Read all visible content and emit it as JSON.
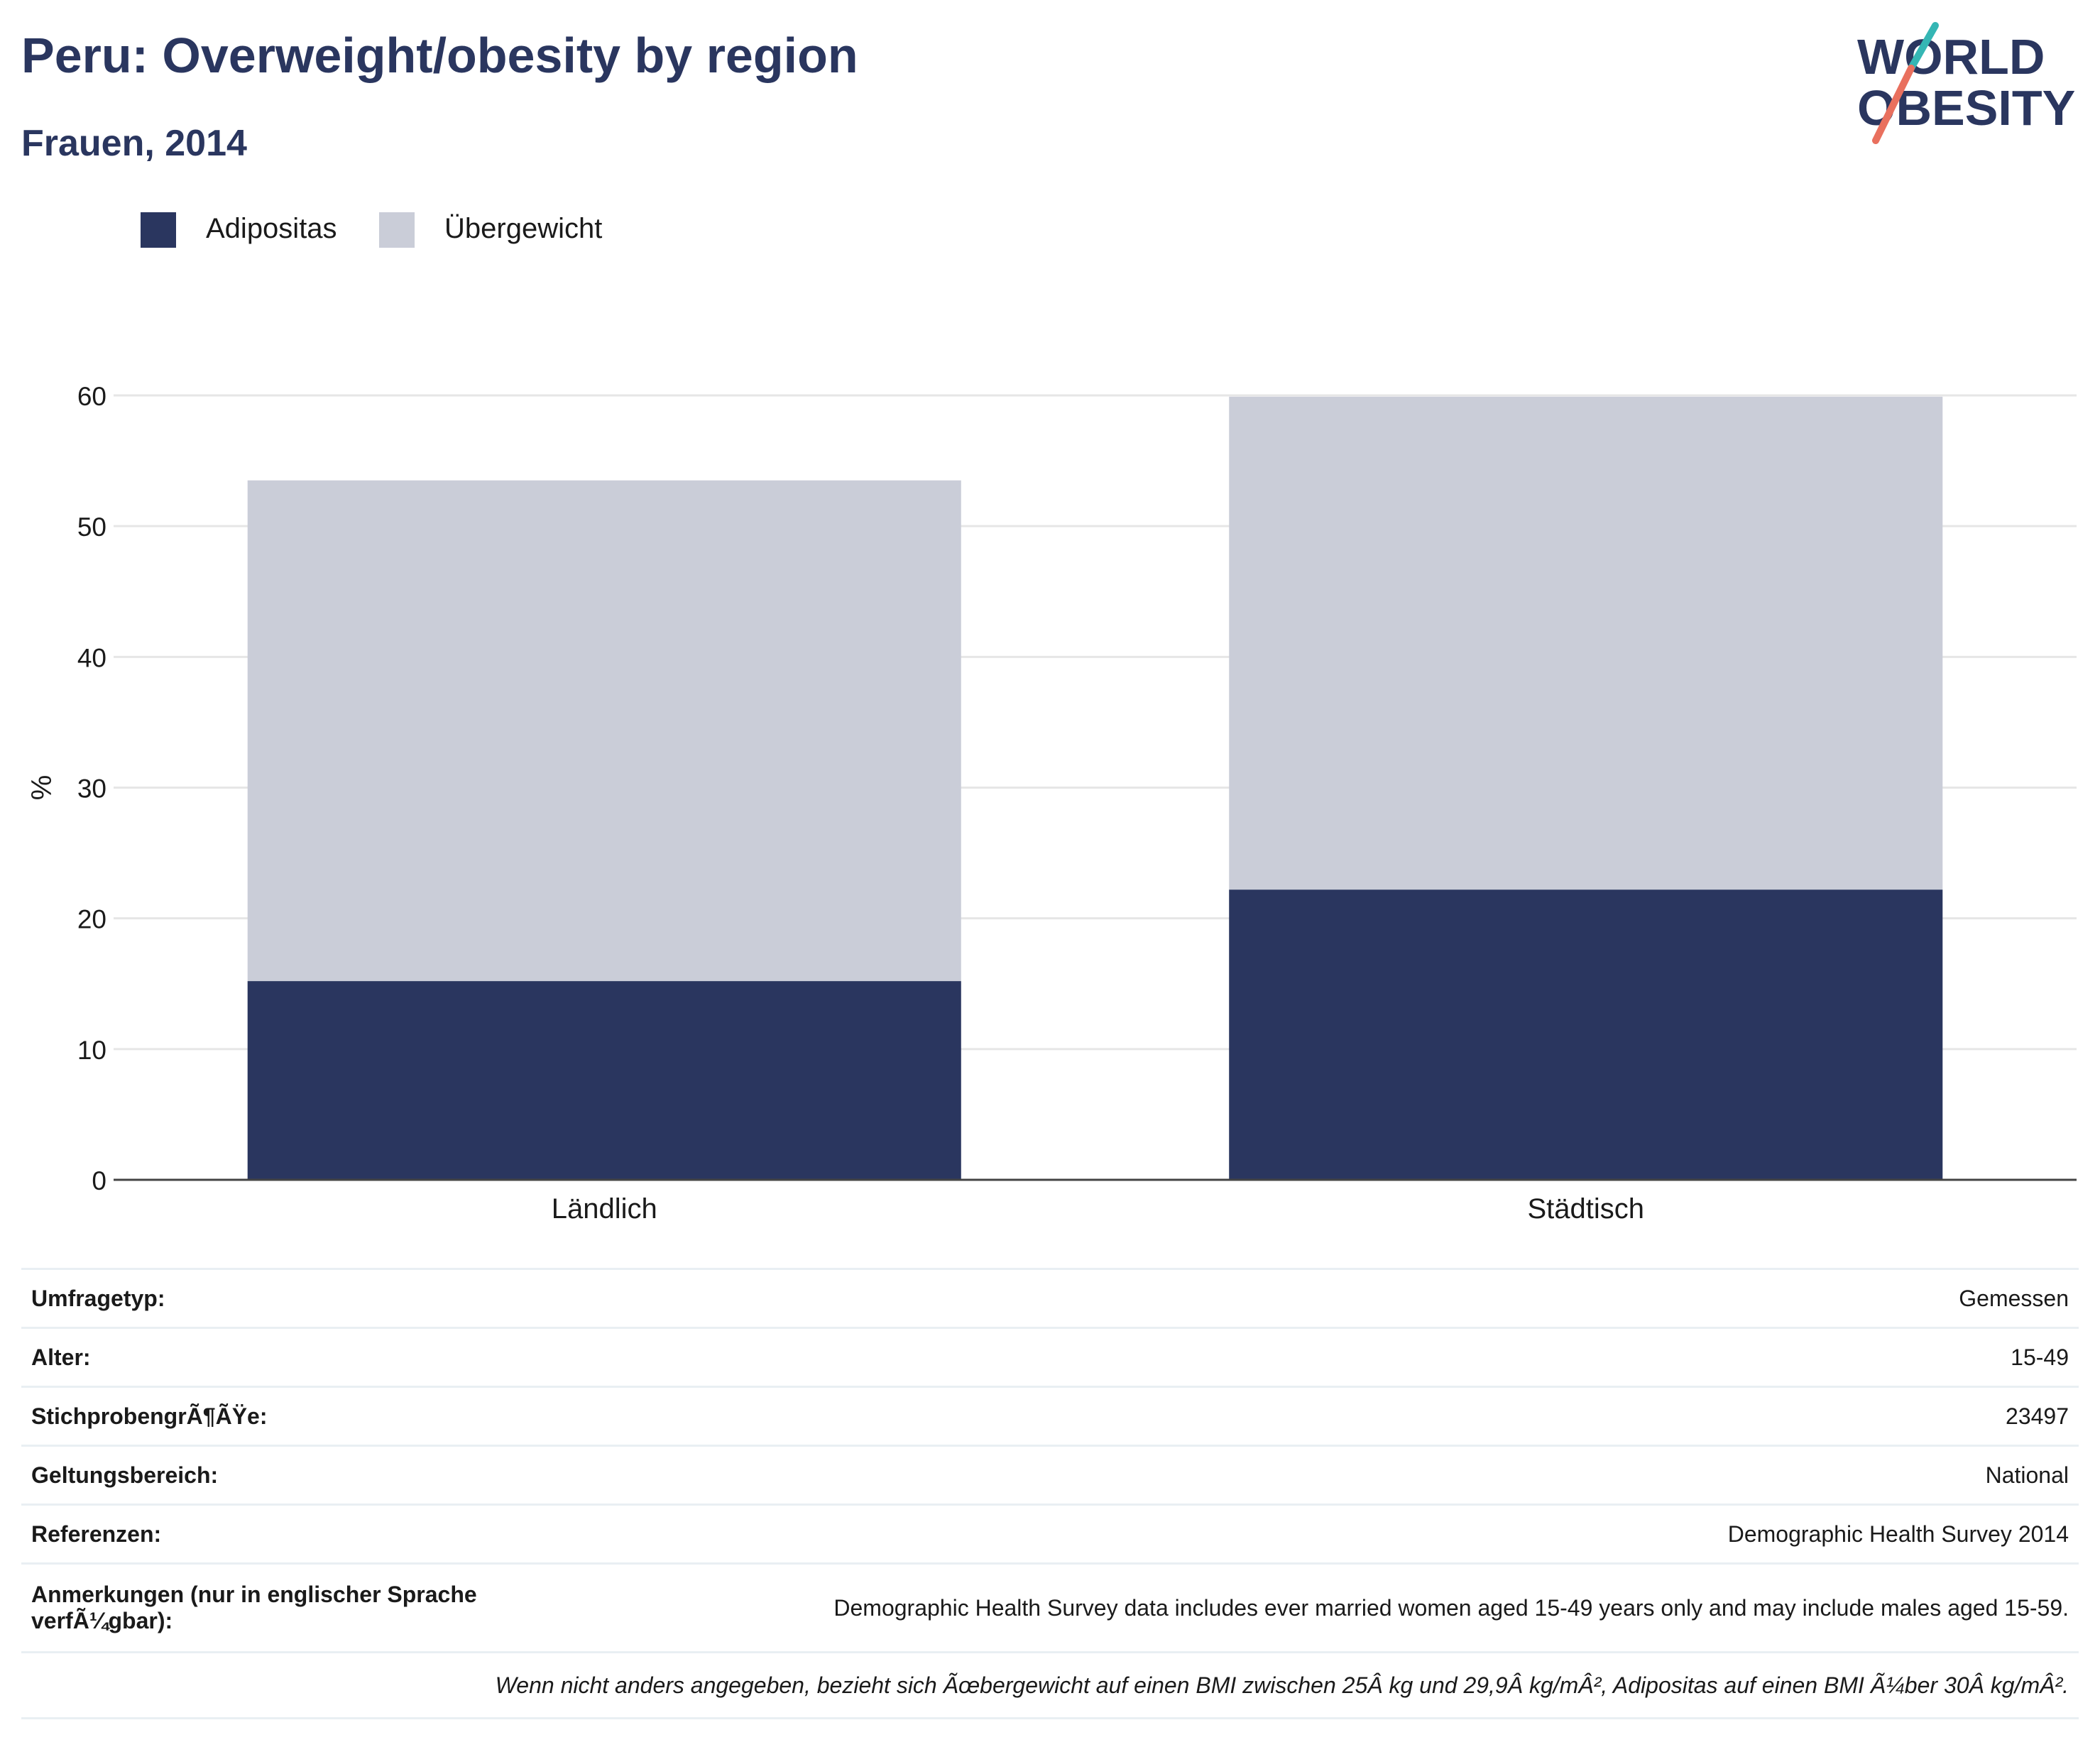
{
  "header": {
    "title": "Peru: Overweight/obesity by region",
    "subtitle": "Frauen, 2014"
  },
  "logo": {
    "line1": "WORLD",
    "line2": "OBESITY"
  },
  "colors": {
    "obesity": "#2a365f",
    "overweight": "#cacdd8",
    "title": "#2a365f",
    "gridline": "#e6e6e6",
    "logo_teal": "#35b6b4",
    "logo_coral": "#e9705e"
  },
  "legend": [
    {
      "label": "Adipositas",
      "color": "#2a365f"
    },
    {
      "label": "Übergewicht",
      "color": "#cacdd8"
    }
  ],
  "chart_data": {
    "type": "bar",
    "stacked": true,
    "categories": [
      "Ländlich",
      "Städtisch"
    ],
    "series": [
      {
        "name": "Adipositas",
        "values": [
          15.2,
          22.2
        ]
      },
      {
        "name": "Übergewicht",
        "values": [
          38.3,
          37.7
        ]
      }
    ],
    "ylabel": "%",
    "xlabel": "",
    "ylim": [
      0,
      60
    ],
    "yticks": [
      0,
      10,
      20,
      30,
      40,
      50,
      60
    ],
    "grid": true,
    "legend_position": "top-left"
  },
  "info": [
    {
      "label": "Umfragetyp:",
      "value": "Gemessen"
    },
    {
      "label": "Alter:",
      "value": "15-49"
    },
    {
      "label": "StichprobengrÃ¶ÃŸe:",
      "value": "23497"
    },
    {
      "label": "Geltungsbereich:",
      "value": "National"
    },
    {
      "label": "Referenzen:",
      "value": "Demographic Health Survey 2014"
    },
    {
      "label": "Anmerkungen (nur in englischer Sprache verfÃ¼gbar):",
      "value": "Demographic Health Survey data includes ever married women aged 15-49 years only and may include males aged 15-59."
    }
  ],
  "footnote": "Wenn nicht anders angegeben, bezieht sich Ãœbergewicht auf einen BMI zwischen 25Â kg und 29,9Â kg/mÂ², Adipositas auf einen BMI Ã¼ber 30Â kg/mÂ²."
}
